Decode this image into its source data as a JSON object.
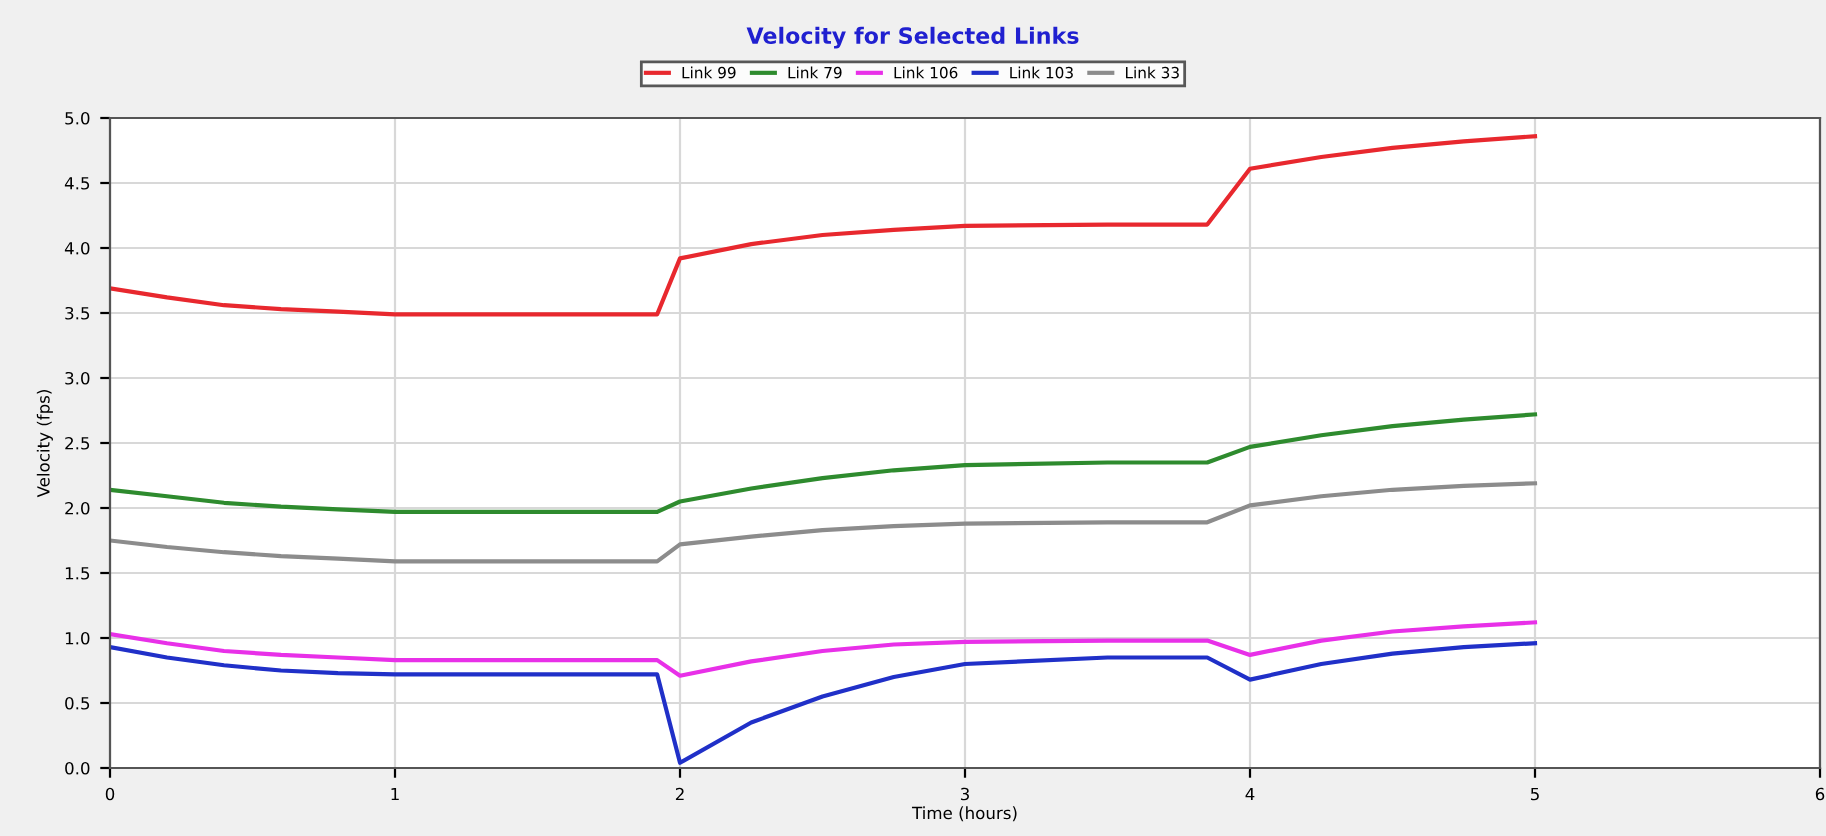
{
  "chart_data": {
    "type": "line",
    "title": "Velocity for Selected Links",
    "xlabel": "Time (hours)",
    "ylabel": "Velocity (fps)",
    "x": [
      0,
      0.2,
      0.4,
      0.6,
      0.8,
      1.0,
      1.5,
      1.92,
      2.0,
      2.25,
      2.5,
      2.75,
      3.0,
      3.5,
      3.85,
      4.0,
      4.25,
      4.5,
      4.75,
      5.0
    ],
    "series": [
      {
        "name": "Link 99",
        "color": "#e8282e",
        "values": [
          3.69,
          3.62,
          3.56,
          3.53,
          3.51,
          3.49,
          3.49,
          3.49,
          3.92,
          4.03,
          4.1,
          4.14,
          4.17,
          4.18,
          4.18,
          4.61,
          4.7,
          4.77,
          4.82,
          4.86
        ]
      },
      {
        "name": "Link 79",
        "color": "#2e8b2e",
        "values": [
          2.14,
          2.09,
          2.04,
          2.01,
          1.99,
          1.97,
          1.97,
          1.97,
          2.05,
          2.15,
          2.23,
          2.29,
          2.33,
          2.35,
          2.35,
          2.47,
          2.56,
          2.63,
          2.68,
          2.72
        ]
      },
      {
        "name": "Link 106",
        "color": "#e830e8",
        "values": [
          1.03,
          0.96,
          0.9,
          0.87,
          0.85,
          0.83,
          0.83,
          0.83,
          0.71,
          0.82,
          0.9,
          0.95,
          0.97,
          0.98,
          0.98,
          0.87,
          0.98,
          1.05,
          1.09,
          1.12
        ]
      },
      {
        "name": "Link 103",
        "color": "#2030c8",
        "values": [
          0.93,
          0.85,
          0.79,
          0.75,
          0.73,
          0.72,
          0.72,
          0.72,
          0.04,
          0.35,
          0.55,
          0.7,
          0.8,
          0.85,
          0.85,
          0.68,
          0.8,
          0.88,
          0.93,
          0.96
        ]
      },
      {
        "name": "Link 33",
        "color": "#8c8c8c",
        "values": [
          1.75,
          1.7,
          1.66,
          1.63,
          1.61,
          1.59,
          1.59,
          1.59,
          1.72,
          1.78,
          1.83,
          1.86,
          1.88,
          1.89,
          1.89,
          2.02,
          2.09,
          2.14,
          2.17,
          2.19
        ]
      }
    ],
    "xlim": [
      0,
      6
    ],
    "xticks": [
      0,
      1,
      2,
      3,
      4,
      5,
      6
    ],
    "ylim": [
      0,
      5
    ],
    "yticks": [
      {
        "value": 0,
        "label": "0.0"
      },
      {
        "value": 0.5,
        "label": "0.5"
      },
      {
        "value": 1,
        "label": "1.0"
      },
      {
        "value": 1.5,
        "label": "1.5"
      },
      {
        "value": 2,
        "label": "2.0"
      },
      {
        "value": 2.5,
        "label": "2.5"
      },
      {
        "value": 3,
        "label": "3.0"
      },
      {
        "value": 3.5,
        "label": "3.5"
      },
      {
        "value": 4,
        "label": "4.0"
      },
      {
        "value": 4.5,
        "label": "4.5"
      },
      {
        "value": 5,
        "label": "5.0"
      }
    ],
    "grid": true,
    "legend": "top",
    "marker": "none",
    "line_style": "solid"
  }
}
